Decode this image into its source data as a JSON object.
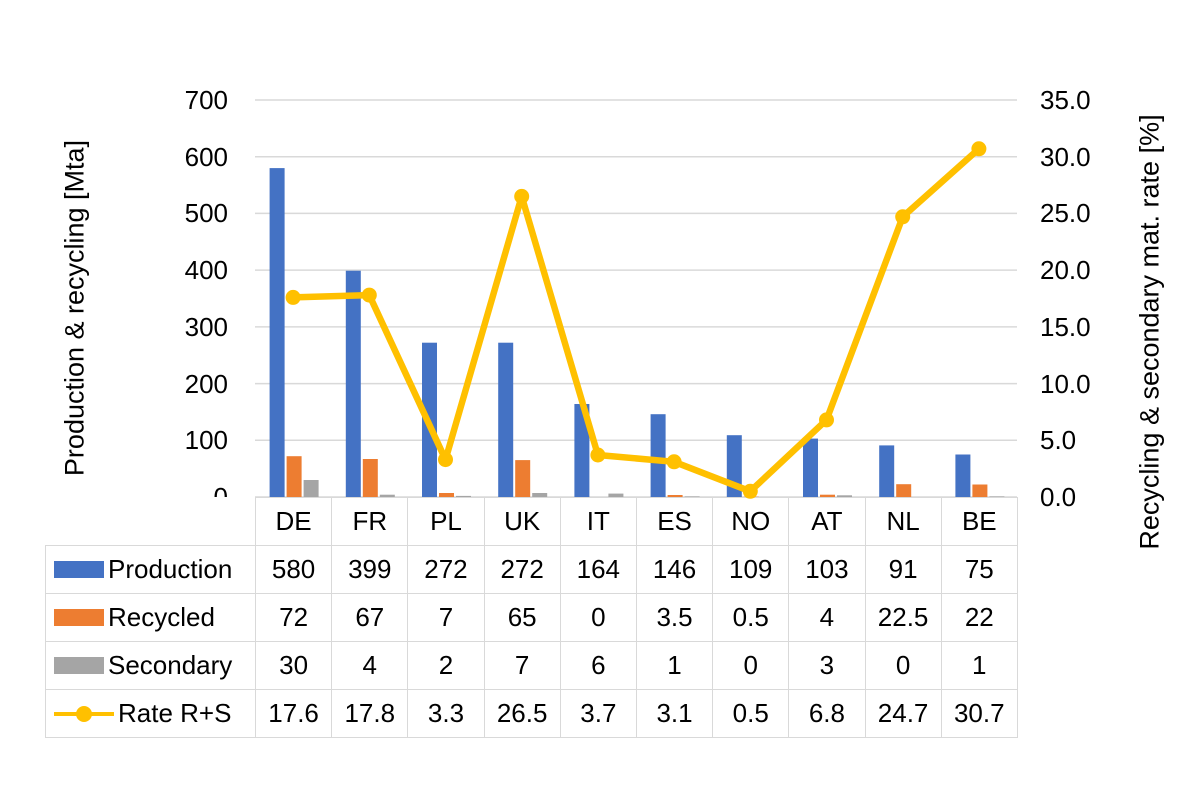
{
  "chart_data": {
    "type": "combo-bar-line",
    "categories": [
      "DE",
      "FR",
      "PL",
      "UK",
      "IT",
      "ES",
      "NO",
      "AT",
      "NL",
      "BE"
    ],
    "series": [
      {
        "name": "Production",
        "type": "bar",
        "axis": "left",
        "color": "#4472c4",
        "values": [
          580,
          399,
          272,
          272,
          164,
          146,
          109,
          103,
          91,
          75
        ]
      },
      {
        "name": "Recycled",
        "type": "bar",
        "axis": "left",
        "color": "#ed7d31",
        "values": [
          72,
          67,
          7,
          65,
          0,
          3.5,
          0.5,
          4,
          22.5,
          22
        ]
      },
      {
        "name": "Secondary",
        "type": "bar",
        "axis": "left",
        "color": "#a5a5a5",
        "values": [
          30,
          4,
          2,
          7,
          6,
          1,
          0,
          3,
          0,
          1
        ]
      },
      {
        "name": "Rate R+S",
        "type": "line",
        "axis": "right",
        "color": "#ffc000",
        "values": [
          17.6,
          17.8,
          3.3,
          26.5,
          3.7,
          3.1,
          0.5,
          6.8,
          24.7,
          30.7
        ]
      }
    ],
    "left_axis": {
      "label": "Production & recycling [Mta]",
      "min": 0,
      "max": 700,
      "step": 100,
      "ticks": [
        "0",
        "100",
        "200",
        "300",
        "400",
        "500",
        "600",
        "700"
      ]
    },
    "right_axis": {
      "label": "Recycling & secondary mat. rate [%]",
      "min": 0,
      "max": 35,
      "step": 5,
      "ticks": [
        "0.0",
        "5.0",
        "10.0",
        "15.0",
        "20.0",
        "25.0",
        "30.0",
        "35.0"
      ]
    },
    "grid": true,
    "legend_position": "table-left",
    "colors": {
      "gridline": "#d9d9d9",
      "table_border": "#d9d9d9",
      "text": "#000000",
      "background": "#ffffff"
    }
  }
}
